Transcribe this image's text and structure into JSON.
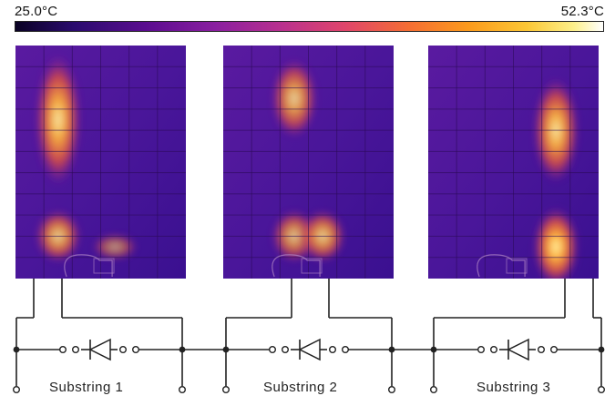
{
  "colorbar": {
    "min_label": "25.0°C",
    "max_label": "52.3°C",
    "min_value": 25.0,
    "max_value": 52.3,
    "palette": "ironbow"
  },
  "panels": [
    {
      "name": "substring-1",
      "hotspots": [
        {
          "col": 1,
          "row": 1,
          "rows": 5,
          "intensity": 0.95
        },
        {
          "col": 1,
          "row": 8,
          "rows": 2,
          "intensity": 0.85
        },
        {
          "col": 3,
          "row": 9,
          "rows": 1,
          "intensity": 0.6
        }
      ]
    },
    {
      "name": "substring-2",
      "hotspots": [
        {
          "col": 2,
          "row": 1,
          "rows": 3,
          "intensity": 0.85
        },
        {
          "col": 2,
          "row": 8,
          "rows": 2,
          "intensity": 0.8
        },
        {
          "col": 3,
          "row": 8,
          "rows": 2,
          "intensity": 0.85
        }
      ]
    },
    {
      "name": "substring-3",
      "hotspots": [
        {
          "col": 4,
          "row": 2,
          "rows": 4,
          "intensity": 0.95
        },
        {
          "col": 4,
          "row": 8,
          "rows": 3,
          "intensity": 1.0
        }
      ]
    }
  ],
  "substrings": [
    {
      "label": "Substring 1"
    },
    {
      "label": "Substring 2"
    },
    {
      "label": "Substring 3"
    }
  ]
}
